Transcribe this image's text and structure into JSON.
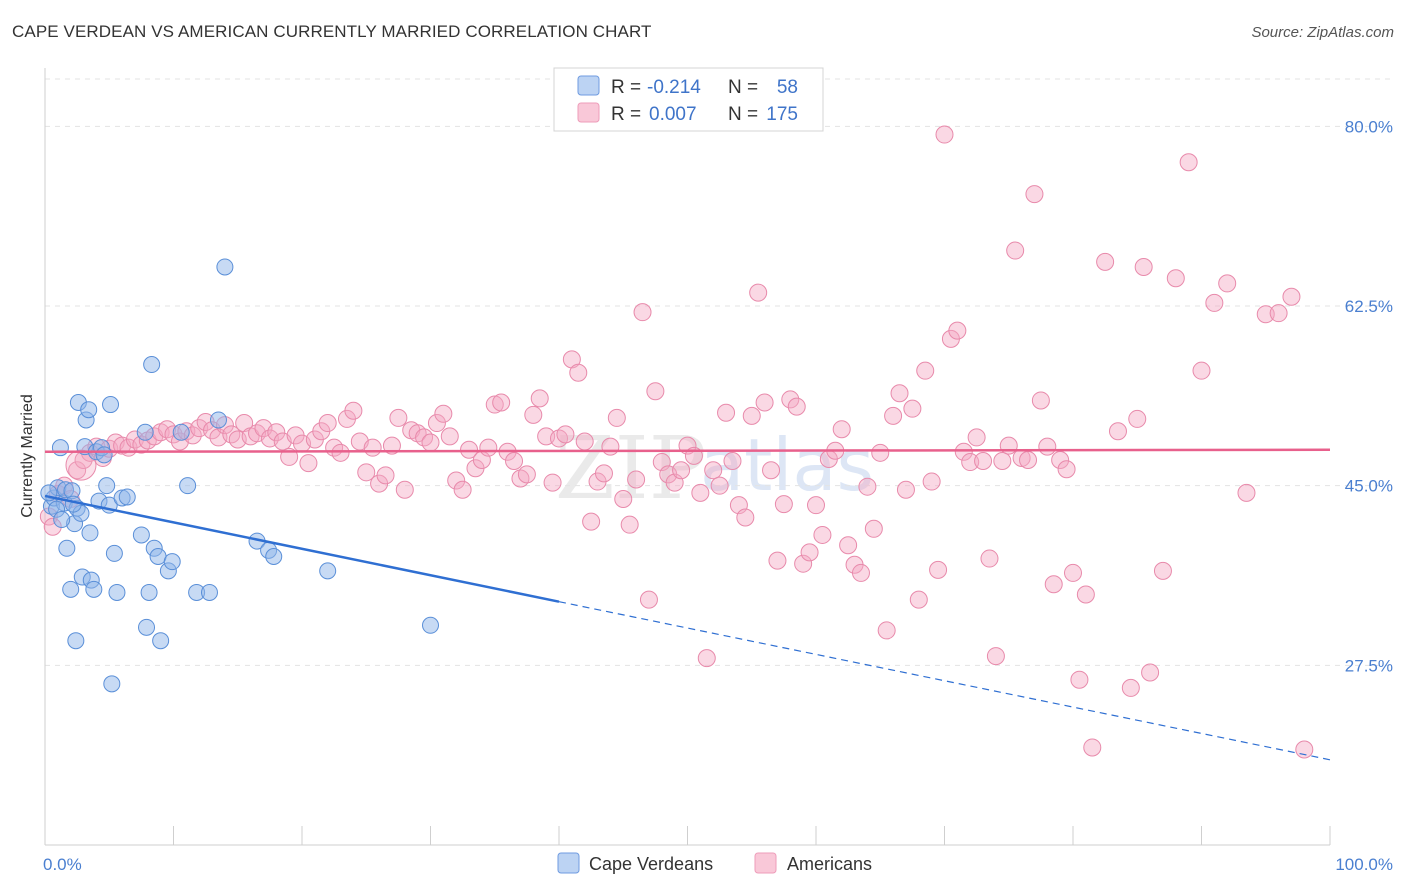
{
  "title": "CAPE VERDEAN VS AMERICAN CURRENTLY MARRIED CORRELATION CHART",
  "source": "Source: ZipAtlas.com",
  "watermark": {
    "zip": "ZIP",
    "atlas": "atlas"
  },
  "legend": [
    {
      "r_label": "R =",
      "r_value": "-0.214",
      "n_label": "N =",
      "n_value": "58"
    },
    {
      "r_label": "R =",
      "r_value": "0.007",
      "n_label": "N =",
      "n_value": "175"
    }
  ],
  "colors": {
    "blue": "#8fb6ea",
    "blue_stroke": "#5a8fd8",
    "blue_line": "#2f6fd2",
    "pink": "#f4a9c3",
    "pink_stroke": "#e88aab",
    "pink_line": "#e8608c",
    "axis_text": "#4a7fd0"
  },
  "chart_data": {
    "type": "scatter",
    "title": "CAPE VERDEAN VS AMERICAN CURRENTLY MARRIED CORRELATION CHART",
    "xlabel": "",
    "ylabel": "Currently Married",
    "xlim": [
      0,
      100
    ],
    "ylim": [
      10,
      85
    ],
    "x_tick_labels": [
      "0.0%",
      "100.0%"
    ],
    "y_ticks": [
      27.5,
      45.0,
      62.5,
      80.0
    ],
    "y_tick_labels": [
      "27.5%",
      "45.0%",
      "62.5%",
      "80.0%"
    ],
    "legend_labels": [
      "Cape Verdeans",
      "Americans"
    ],
    "series": [
      {
        "name": "Cape Verdeans",
        "trend": {
          "x0": 0,
          "y0": 44.0,
          "x1": 40,
          "y1": 33.7,
          "x_dash_end": 100,
          "y_dash_end": 18.3
        },
        "points": [
          [
            0.5,
            43.0
          ],
          [
            0.7,
            43.8
          ],
          [
            1.0,
            44.8
          ],
          [
            1.2,
            48.7
          ],
          [
            1.5,
            43.3
          ],
          [
            1.6,
            44.6
          ],
          [
            1.7,
            38.9
          ],
          [
            2.0,
            34.9
          ],
          [
            2.1,
            44.5
          ],
          [
            2.3,
            41.3
          ],
          [
            2.4,
            29.9
          ],
          [
            2.5,
            42.8
          ],
          [
            2.6,
            53.1
          ],
          [
            2.8,
            42.3
          ],
          [
            2.9,
            36.1
          ],
          [
            3.1,
            48.8
          ],
          [
            3.2,
            51.4
          ],
          [
            3.4,
            52.4
          ],
          [
            3.5,
            40.4
          ],
          [
            3.6,
            35.8
          ],
          [
            3.8,
            34.9
          ],
          [
            4.0,
            48.3
          ],
          [
            4.2,
            43.5
          ],
          [
            4.4,
            48.7
          ],
          [
            4.6,
            48.0
          ],
          [
            4.8,
            45.0
          ],
          [
            5.0,
            43.1
          ],
          [
            5.1,
            52.9
          ],
          [
            5.2,
            25.7
          ],
          [
            5.4,
            38.4
          ],
          [
            5.6,
            34.6
          ],
          [
            6.0,
            43.8
          ],
          [
            6.4,
            43.9
          ],
          [
            7.5,
            40.2
          ],
          [
            7.8,
            50.2
          ],
          [
            7.9,
            31.2
          ],
          [
            8.1,
            34.6
          ],
          [
            8.3,
            56.8
          ],
          [
            8.5,
            38.9
          ],
          [
            8.8,
            38.1
          ],
          [
            9.0,
            29.9
          ],
          [
            9.6,
            36.7
          ],
          [
            9.9,
            37.6
          ],
          [
            10.6,
            50.2
          ],
          [
            11.1,
            45.0
          ],
          [
            11.8,
            34.6
          ],
          [
            12.8,
            34.6
          ],
          [
            13.5,
            51.4
          ],
          [
            14.0,
            66.3
          ],
          [
            16.5,
            39.6
          ],
          [
            17.4,
            38.7
          ],
          [
            17.8,
            38.1
          ],
          [
            22.0,
            36.7
          ],
          [
            30.0,
            31.4
          ],
          [
            0.3,
            44.3
          ],
          [
            0.9,
            42.7
          ],
          [
            1.3,
            41.7
          ],
          [
            2.2,
            43.2
          ]
        ]
      },
      {
        "name": "Americans",
        "trend": {
          "x0": 0,
          "y0": 48.3,
          "x1": 100,
          "y1": 48.5
        },
        "points": [
          [
            0.3,
            42.0
          ],
          [
            0.6,
            41.0
          ],
          [
            1.0,
            44.2
          ],
          [
            1.5,
            45.0
          ],
          [
            2.0,
            43.7
          ],
          [
            2.5,
            46.5
          ],
          [
            3.0,
            47.5
          ],
          [
            3.5,
            48.2
          ],
          [
            4.0,
            48.8
          ],
          [
            4.5,
            47.7
          ],
          [
            5.0,
            48.6
          ],
          [
            5.5,
            49.2
          ],
          [
            6.0,
            48.9
          ],
          [
            6.5,
            48.7
          ],
          [
            7.0,
            49.5
          ],
          [
            7.5,
            49.0
          ],
          [
            8.0,
            49.4
          ],
          [
            8.5,
            49.8
          ],
          [
            9.0,
            50.2
          ],
          [
            9.5,
            50.5
          ],
          [
            10.0,
            50.0
          ],
          [
            10.5,
            49.3
          ],
          [
            11.0,
            50.3
          ],
          [
            11.5,
            49.9
          ],
          [
            12.0,
            50.6
          ],
          [
            12.5,
            51.2
          ],
          [
            13.0,
            50.4
          ],
          [
            13.5,
            49.7
          ],
          [
            14.0,
            50.9
          ],
          [
            14.5,
            50.0
          ],
          [
            15.0,
            49.5
          ],
          [
            15.5,
            51.1
          ],
          [
            16.0,
            49.8
          ],
          [
            16.5,
            50.1
          ],
          [
            17.0,
            50.6
          ],
          [
            17.5,
            49.6
          ],
          [
            18.0,
            50.2
          ],
          [
            18.5,
            49.3
          ],
          [
            19.0,
            47.8
          ],
          [
            19.5,
            49.9
          ],
          [
            20.0,
            49.1
          ],
          [
            20.5,
            47.2
          ],
          [
            21.0,
            49.5
          ],
          [
            21.5,
            50.3
          ],
          [
            22.0,
            51.1
          ],
          [
            22.5,
            48.7
          ],
          [
            23.0,
            48.2
          ],
          [
            23.5,
            51.5
          ],
          [
            24.0,
            52.3
          ],
          [
            24.5,
            49.3
          ],
          [
            25.0,
            46.3
          ],
          [
            25.5,
            48.7
          ],
          [
            26.0,
            45.2
          ],
          [
            26.5,
            46.0
          ],
          [
            27.0,
            48.9
          ],
          [
            27.5,
            51.6
          ],
          [
            28.0,
            44.6
          ],
          [
            28.5,
            50.4
          ],
          [
            29.0,
            50.1
          ],
          [
            29.5,
            49.7
          ],
          [
            30.0,
            49.2
          ],
          [
            30.5,
            51.1
          ],
          [
            31.0,
            52.0
          ],
          [
            31.5,
            49.8
          ],
          [
            32.0,
            45.5
          ],
          [
            32.5,
            44.6
          ],
          [
            33.0,
            48.5
          ],
          [
            33.5,
            46.7
          ],
          [
            34.0,
            47.5
          ],
          [
            34.5,
            48.7
          ],
          [
            35.0,
            52.9
          ],
          [
            35.5,
            53.1
          ],
          [
            36.0,
            48.3
          ],
          [
            36.5,
            47.4
          ],
          [
            37.0,
            45.7
          ],
          [
            37.5,
            46.1
          ],
          [
            38.0,
            51.9
          ],
          [
            38.5,
            53.5
          ],
          [
            39.0,
            49.8
          ],
          [
            39.5,
            45.3
          ],
          [
            40.0,
            49.6
          ],
          [
            40.5,
            50.0
          ],
          [
            41.0,
            57.3
          ],
          [
            41.5,
            56.0
          ],
          [
            42.0,
            49.3
          ],
          [
            42.5,
            41.5
          ],
          [
            43.0,
            45.4
          ],
          [
            43.5,
            46.2
          ],
          [
            44.0,
            48.8
          ],
          [
            44.5,
            51.6
          ],
          [
            45.0,
            43.7
          ],
          [
            45.5,
            41.2
          ],
          [
            46.0,
            45.6
          ],
          [
            46.5,
            61.9
          ],
          [
            47.0,
            33.9
          ],
          [
            47.5,
            54.2
          ],
          [
            48.0,
            47.3
          ],
          [
            48.5,
            46.1
          ],
          [
            49.0,
            45.3
          ],
          [
            49.5,
            46.5
          ],
          [
            50.0,
            48.9
          ],
          [
            50.5,
            47.9
          ],
          [
            51.0,
            44.3
          ],
          [
            51.5,
            28.2
          ],
          [
            52.0,
            46.5
          ],
          [
            52.5,
            45.0
          ],
          [
            53.0,
            52.1
          ],
          [
            53.5,
            47.4
          ],
          [
            54.0,
            43.1
          ],
          [
            54.5,
            41.9
          ],
          [
            55.0,
            51.8
          ],
          [
            55.5,
            63.8
          ],
          [
            56.0,
            53.1
          ],
          [
            56.5,
            46.5
          ],
          [
            57.0,
            37.7
          ],
          [
            57.5,
            43.2
          ],
          [
            58.0,
            53.4
          ],
          [
            58.5,
            52.7
          ],
          [
            59.0,
            37.4
          ],
          [
            59.5,
            38.5
          ],
          [
            60.0,
            43.1
          ],
          [
            60.5,
            40.2
          ],
          [
            61.0,
            47.6
          ],
          [
            61.5,
            48.4
          ],
          [
            62.0,
            50.5
          ],
          [
            62.5,
            39.2
          ],
          [
            63.0,
            37.3
          ],
          [
            63.5,
            36.5
          ],
          [
            64.0,
            44.9
          ],
          [
            64.5,
            40.8
          ],
          [
            65.0,
            48.2
          ],
          [
            65.5,
            30.9
          ],
          [
            66.0,
            51.8
          ],
          [
            66.5,
            54.0
          ],
          [
            67.0,
            44.6
          ],
          [
            67.5,
            52.5
          ],
          [
            68.0,
            33.9
          ],
          [
            68.5,
            56.2
          ],
          [
            69.0,
            45.4
          ],
          [
            69.5,
            36.8
          ],
          [
            70.0,
            79.2
          ],
          [
            70.5,
            59.3
          ],
          [
            71.0,
            60.1
          ],
          [
            71.5,
            48.3
          ],
          [
            72.0,
            47.3
          ],
          [
            72.5,
            49.7
          ],
          [
            73.0,
            47.4
          ],
          [
            73.5,
            37.9
          ],
          [
            74.0,
            28.4
          ],
          [
            74.5,
            47.4
          ],
          [
            75.0,
            48.9
          ],
          [
            75.5,
            67.9
          ],
          [
            76.0,
            47.7
          ],
          [
            76.5,
            47.5
          ],
          [
            77.0,
            73.4
          ],
          [
            77.5,
            53.3
          ],
          [
            78.0,
            48.8
          ],
          [
            78.5,
            35.4
          ],
          [
            79.0,
            47.5
          ],
          [
            79.5,
            46.6
          ],
          [
            80.0,
            36.5
          ],
          [
            80.5,
            26.1
          ],
          [
            81.0,
            34.4
          ],
          [
            81.5,
            19.5
          ],
          [
            82.5,
            66.8
          ],
          [
            83.5,
            50.3
          ],
          [
            84.5,
            25.3
          ],
          [
            85.0,
            51.5
          ],
          [
            85.5,
            66.3
          ],
          [
            86.0,
            26.8
          ],
          [
            87.0,
            36.7
          ],
          [
            88.0,
            65.2
          ],
          [
            89.0,
            76.5
          ],
          [
            90.0,
            56.2
          ],
          [
            91.0,
            62.8
          ],
          [
            92.0,
            64.7
          ],
          [
            93.5,
            44.3
          ],
          [
            95.0,
            61.7
          ],
          [
            96.0,
            61.8
          ],
          [
            97.0,
            63.4
          ],
          [
            98.0,
            19.3
          ]
        ]
      }
    ]
  }
}
